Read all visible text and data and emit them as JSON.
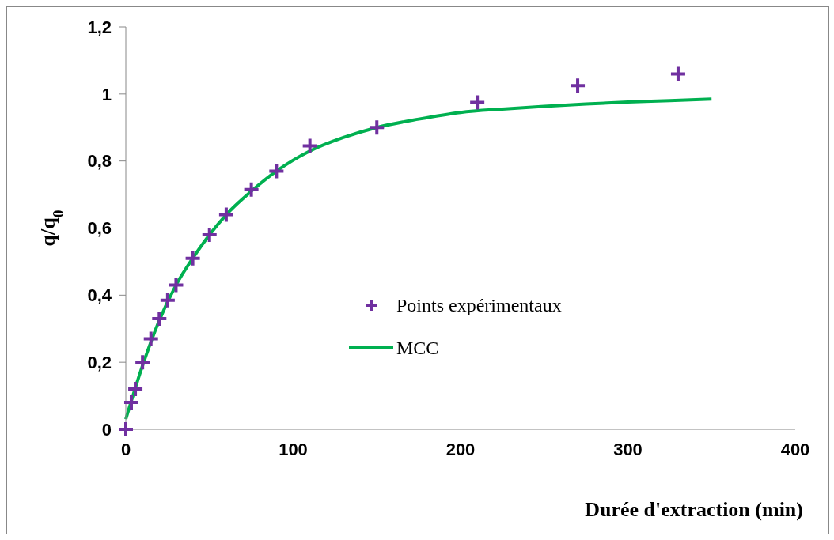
{
  "chart_data": {
    "type": "scatter",
    "xlabel": "Durée d'extraction (min)",
    "ylabel": "q/q$_{0}$",
    "xlim": [
      0,
      400
    ],
    "xticks": [
      0,
      100,
      200,
      300,
      400
    ],
    "ylim": [
      0,
      1.2
    ],
    "yticks": [
      {
        "value": 0,
        "label": "0"
      },
      {
        "value": 0.2,
        "label": "0,2"
      },
      {
        "value": 0.4,
        "label": "0,4"
      },
      {
        "value": 0.6,
        "label": "0,6"
      },
      {
        "value": 0.8,
        "label": "0,8"
      },
      {
        "value": 1,
        "label": "1"
      },
      {
        "value": 1.2,
        "label": "1,2"
      }
    ],
    "grid": false,
    "legend": "center",
    "series": [
      {
        "name": "Points expérimentaux",
        "type": "scatter",
        "marker": "cross",
        "color": "#7030a0",
        "x": [
          0,
          3.3,
          5.7,
          10,
          15,
          20,
          25,
          30,
          40,
          50,
          60,
          75,
          90,
          110,
          150,
          210,
          270,
          330
        ],
        "values": [
          0,
          0.08,
          0.12,
          0.2,
          0.27,
          0.33,
          0.385,
          0.43,
          0.51,
          0.58,
          0.64,
          0.715,
          0.77,
          0.845,
          0.9,
          0.975,
          1.025,
          1.06
        ]
      },
      {
        "name": "MCC",
        "type": "line",
        "marker": "none",
        "line_style": "solid",
        "color": "#00b050",
        "x": [
          0,
          10,
          20,
          30,
          40,
          50,
          60,
          75,
          90,
          110,
          130,
          150,
          175,
          200,
          225,
          250,
          275,
          300,
          325,
          350
        ],
        "values": [
          0.03,
          0.19,
          0.325,
          0.43,
          0.51,
          0.58,
          0.64,
          0.71,
          0.77,
          0.83,
          0.87,
          0.9,
          0.925,
          0.945,
          0.955,
          0.963,
          0.97,
          0.976,
          0.98,
          0.985
        ]
      }
    ]
  }
}
